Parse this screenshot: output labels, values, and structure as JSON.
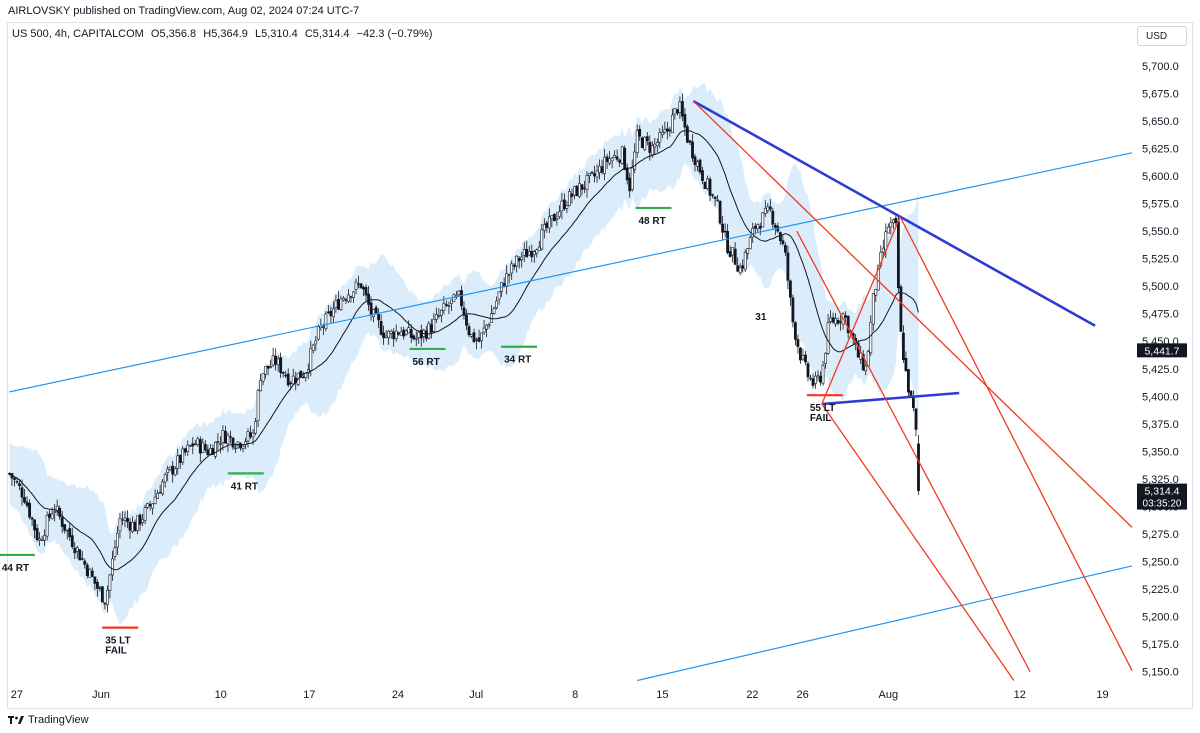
{
  "header": {
    "publisher": "AIRLOVSKY published on TradingView.com, Aug 02, 2024 07:24 UTC-7",
    "symbol": "US 500, 4h, CAPITALCOM",
    "open": "O5,356.8",
    "high": "H5,364.9",
    "low": "L5,310.4",
    "close": "C5,314.4",
    "change": "−42.3 (−0.79%)",
    "currency_button": "USD"
  },
  "footer": {
    "brand": "TradingView"
  },
  "colors": {
    "up": "#131722",
    "down": "#131722",
    "band": "#d7ebfb",
    "trend_blue": "#2196f3",
    "wedge_blue": "#2f3bd6",
    "channel_red": "#f23a22",
    "support_green": "#2eaf4a",
    "fail_red": "#f23a22"
  },
  "chart_data": {
    "type": "candlestick",
    "y_axis": {
      "min": 5137,
      "max": 5718,
      "ticks": [
        "5,700.0",
        "5,675.0",
        "5,650.0",
        "5,625.0",
        "5,600.0",
        "5,575.0",
        "5,550.0",
        "5,525.0",
        "5,500.0",
        "5,475.0",
        "5,450.0",
        "5,425.0",
        "5,400.0",
        "5,375.0",
        "5,350.0",
        "5,325.0",
        "5,300.0",
        "5,275.0",
        "5,250.0",
        "5,225.0",
        "5,200.0",
        "5,175.0",
        "5,150.0"
      ],
      "tick_values": [
        5700,
        5675,
        5650,
        5625,
        5600,
        5575,
        5550,
        5525,
        5500,
        5475,
        5450,
        5425,
        5400,
        5375,
        5350,
        5325,
        5300,
        5275,
        5250,
        5225,
        5200,
        5175,
        5150
      ]
    },
    "x_axis": {
      "min_day": 0,
      "max_day": 74,
      "labels": [
        {
          "text": "27",
          "day": 0.5
        },
        {
          "text": "Jun",
          "day": 6.2
        },
        {
          "text": "10",
          "day": 14.3
        },
        {
          "text": "17",
          "day": 20.3
        },
        {
          "text": "24",
          "day": 26.3
        },
        {
          "text": "Jul",
          "day": 31.6
        },
        {
          "text": "8",
          "day": 38.3
        },
        {
          "text": "15",
          "day": 44.2
        },
        {
          "text": "22",
          "day": 50.3
        },
        {
          "text": "26",
          "day": 53.7
        },
        {
          "text": "Aug",
          "day": 59.5
        },
        {
          "text": "12",
          "day": 68.4
        },
        {
          "text": "19",
          "day": 74.0
        }
      ]
    },
    "price_tags": [
      {
        "label": "5,441.7",
        "price": 5441.7
      },
      {
        "label": "5,314.4",
        "price": 5314.4,
        "countdown": "03:35:20"
      }
    ],
    "close_keypoints": [
      [
        0,
        5330
      ],
      [
        1.0,
        5310
      ],
      [
        2.0,
        5268
      ],
      [
        3.0,
        5300
      ],
      [
        4.0,
        5275
      ],
      [
        5.0,
        5250
      ],
      [
        6.0,
        5225
      ],
      [
        6.5,
        5215
      ],
      [
        7.5,
        5290
      ],
      [
        8.5,
        5282
      ],
      [
        9.5,
        5300
      ],
      [
        10.5,
        5325
      ],
      [
        11.5,
        5342
      ],
      [
        12.5,
        5358
      ],
      [
        13.5,
        5350
      ],
      [
        14.5,
        5365
      ],
      [
        15.5,
        5358
      ],
      [
        16.5,
        5365
      ],
      [
        17,
        5420
      ],
      [
        18.0,
        5432
      ],
      [
        19.0,
        5415
      ],
      [
        20.0,
        5422
      ],
      [
        21.0,
        5460
      ],
      [
        22.5,
        5490
      ],
      [
        23.8,
        5502
      ],
      [
        24.5,
        5475
      ],
      [
        25.5,
        5455
      ],
      [
        26.5,
        5460
      ],
      [
        27.5,
        5452
      ],
      [
        28.5,
        5462
      ],
      [
        29.5,
        5480
      ],
      [
        30.5,
        5490
      ],
      [
        31.2,
        5455
      ],
      [
        31.8,
        5450
      ],
      [
        32.5,
        5470
      ],
      [
        33.5,
        5505
      ],
      [
        34.5,
        5525
      ],
      [
        35.5,
        5535
      ],
      [
        36.5,
        5555
      ],
      [
        37.5,
        5575
      ],
      [
        38.5,
        5588
      ],
      [
        39.5,
        5598
      ],
      [
        40.5,
        5615
      ],
      [
        41.5,
        5620
      ],
      [
        42.0,
        5590
      ],
      [
        42.5,
        5635
      ],
      [
        43.5,
        5625
      ],
      [
        44.5,
        5640
      ],
      [
        45.3,
        5665
      ],
      [
        46.0,
        5630
      ],
      [
        47.0,
        5598
      ],
      [
        48.0,
        5570
      ],
      [
        48.5,
        5540
      ],
      [
        49.5,
        5515
      ],
      [
        50.5,
        5555
      ],
      [
        51.5,
        5568
      ],
      [
        52.0,
        5552
      ],
      [
        52.5,
        5530
      ],
      [
        53.0,
        5470
      ],
      [
        53.5,
        5440
      ],
      [
        54.0,
        5420
      ],
      [
        54.5,
        5410
      ],
      [
        55.0,
        5420
      ],
      [
        55.5,
        5468
      ],
      [
        56.0,
        5470
      ],
      [
        56.5,
        5475
      ],
      [
        57.0,
        5455
      ],
      [
        57.5,
        5435
      ],
      [
        58.0,
        5425
      ],
      [
        58.5,
        5490
      ],
      [
        59.0,
        5525
      ],
      [
        59.5,
        5555
      ],
      [
        60.0,
        5555
      ],
      [
        60.3,
        5460
      ],
      [
        60.7,
        5420
      ],
      [
        61.0,
        5398
      ],
      [
        61.3,
        5380
      ],
      [
        61.5,
        5340
      ],
      [
        61.7,
        5314
      ]
    ],
    "band_halfwidth": 27,
    "horizontal_levels": [
      {
        "label": "44 RT",
        "day": 0.5,
        "price": 5256,
        "color": "support_green"
      },
      {
        "label": "35 LT",
        "label2": "FAIL",
        "day": 7.5,
        "price": 5190,
        "color": "fail_red"
      },
      {
        "label": "41 RT",
        "day": 16.0,
        "price": 5330,
        "color": "support_green"
      },
      {
        "label": "56 RT",
        "day": 28.3,
        "price": 5443,
        "color": "support_green"
      },
      {
        "label": "34 RT",
        "day": 34.5,
        "price": 5445,
        "color": "support_green"
      },
      {
        "label": "48 RT",
        "day": 43.6,
        "price": 5571,
        "color": "support_green"
      },
      {
        "label": "31",
        "day": 50.9,
        "price": null,
        "color": null
      },
      {
        "label": "55 LT",
        "label2": "FAIL",
        "day": 55.2,
        "price": 5401,
        "color": "fail_red"
      }
    ],
    "trendlines": [
      {
        "color": "trend_blue",
        "width": 1.2,
        "from": [
          0,
          5404
        ],
        "to": [
          76,
          5621
        ]
      },
      {
        "color": "trend_blue",
        "width": 1.2,
        "from": [
          42.5,
          5142
        ],
        "to": [
          76,
          5246
        ]
      },
      {
        "color": "wedge_blue",
        "width": 2.6,
        "from": [
          46.3,
          5668
        ],
        "to": [
          73.5,
          5464
        ]
      },
      {
        "color": "wedge_blue",
        "width": 2.6,
        "from": [
          55.0,
          5393
        ],
        "to": [
          64.3,
          5403
        ]
      },
      {
        "color": "channel_red",
        "width": 1.3,
        "from": [
          46.3,
          5668
        ],
        "to": [
          76,
          5281
        ]
      },
      {
        "color": "channel_red",
        "width": 1.3,
        "from": [
          53.3,
          5550
        ],
        "to": [
          69.1,
          5150
        ]
      },
      {
        "color": "channel_red",
        "width": 1.3,
        "from": [
          55.0,
          5393
        ],
        "to": [
          68.0,
          5142
        ]
      },
      {
        "color": "channel_red",
        "width": 1.3,
        "from": [
          60.3,
          5563
        ],
        "to": [
          76,
          5151
        ]
      },
      {
        "color": "channel_red",
        "width": 1.3,
        "from": [
          55.0,
          5393
        ],
        "to": [
          60.3,
          5563
        ]
      }
    ]
  }
}
